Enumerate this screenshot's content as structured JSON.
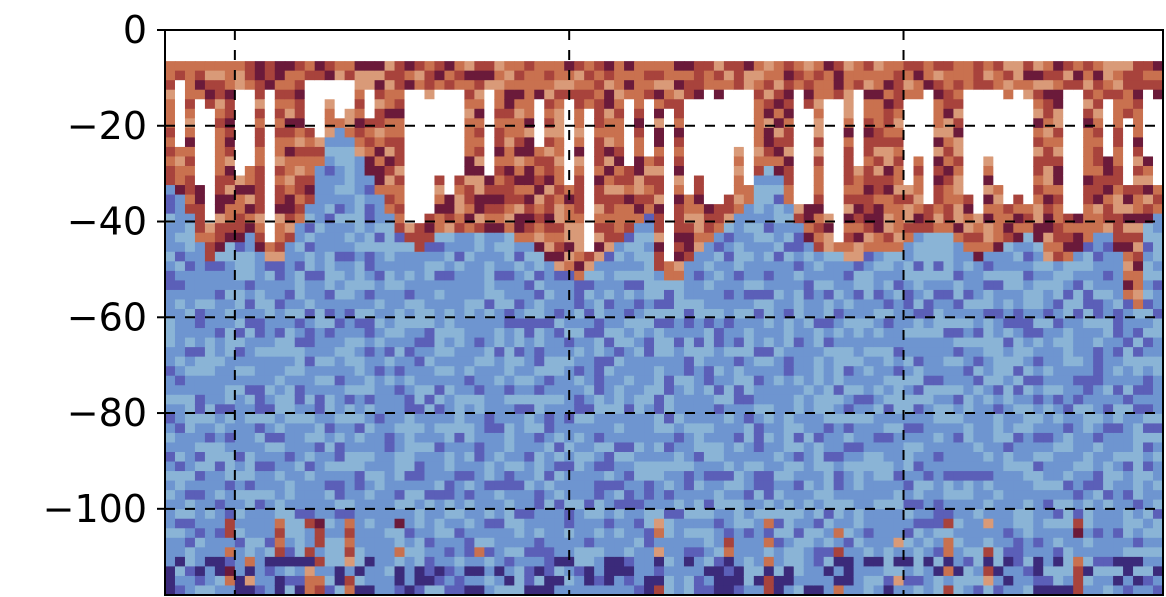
{
  "chart_data": {
    "type": "heatmap",
    "title": "",
    "xlabel": "",
    "ylabel": "",
    "ylim": [
      -118,
      0
    ],
    "yticks": [
      0,
      -20,
      -40,
      -60,
      -80,
      -100
    ],
    "ytick_labels": [
      "0",
      "−20",
      "−40",
      "−60",
      "−80",
      "−100"
    ],
    "x_gridlines_at_fraction": [
      0.07,
      0.405,
      0.74
    ],
    "grid": true,
    "grid_style": "dashed",
    "colormap": "twilight_shifted",
    "no_data_band_top": -6.5,
    "columns": 100,
    "rows": 56,
    "regions": [
      {
        "name": "surface",
        "description": "warm red/orange band",
        "approx_depth_range": [
          -6.5,
          -44
        ]
      },
      {
        "name": "deep",
        "description": "cool blue band",
        "approx_depth_range": [
          -44,
          -118
        ]
      }
    ],
    "boundary_depth": [
      -31,
      -33,
      -38,
      -44,
      -47,
      -45,
      -44,
      -43,
      -42,
      -46,
      -47,
      -47,
      -44,
      -40,
      -35,
      -28,
      -22,
      -20,
      -22,
      -26,
      -30,
      -33,
      -38,
      -42,
      -44,
      -45,
      -43,
      -42,
      -41,
      -41,
      -41,
      -41,
      -41,
      -42,
      -42,
      -43,
      -44,
      -46,
      -48,
      -49,
      -50,
      -51,
      -50,
      -48,
      -46,
      -44,
      -42,
      -40,
      -38,
      -50,
      -52,
      -51,
      -48,
      -46,
      -44,
      -42,
      -40,
      -38,
      -36,
      -30,
      -28,
      -30,
      -35,
      -40,
      -44,
      -45,
      -46,
      -46,
      -47,
      -47,
      -46,
      -46,
      -46,
      -46,
      -44,
      -42,
      -41,
      -41,
      -42,
      -44,
      -46,
      -47,
      -46,
      -45,
      -44,
      -43,
      -42,
      -44,
      -47,
      -48,
      -47,
      -46,
      -43,
      -41,
      -42,
      -46,
      -55,
      -58,
      -40,
      -38
    ],
    "colors": {
      "surface_dark": "#6b1a3a",
      "surface_red": "#a8433c",
      "surface_orange": "#c9714f",
      "surface_light": "#d99a78",
      "deep_light": "#8ab4d6",
      "deep_mid": "#6e95d0",
      "deep_dark": "#5b5fb8",
      "deep_purple": "#3b2a7a",
      "missing": "#ffffff"
    }
  }
}
